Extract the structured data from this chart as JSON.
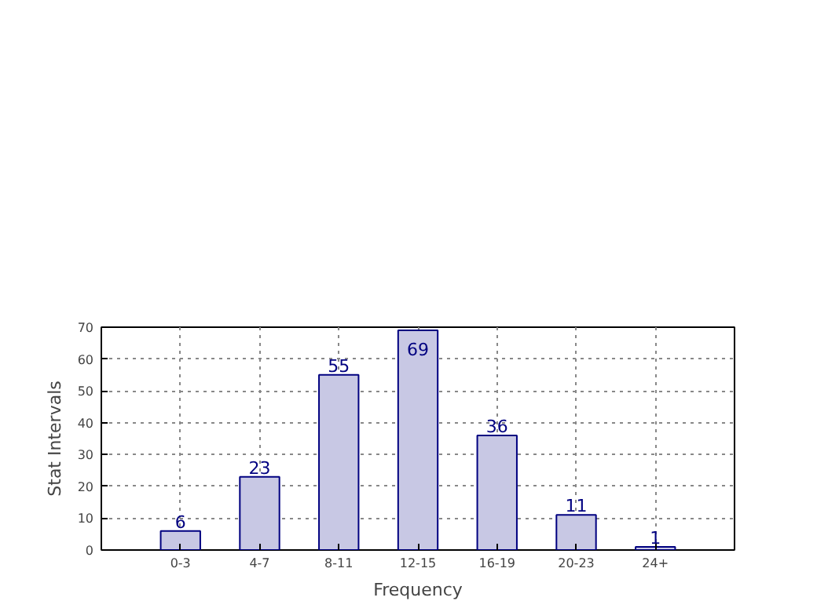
{
  "chart_data": {
    "type": "bar",
    "xlabel": "Frequency",
    "ylabel": "Stat Intervals",
    "categories": [
      "0-3",
      "4-7",
      "8-11",
      "12-15",
      "16-19",
      "20-23",
      "24+"
    ],
    "values": [
      6,
      23,
      55,
      69,
      36,
      11,
      1
    ],
    "color": "#c8c8e4",
    "ylim": [
      0,
      70
    ],
    "yticks": [
      0,
      10,
      20,
      30,
      40,
      50,
      60,
      70
    ],
    "grid": true,
    "data_labels": true
  }
}
